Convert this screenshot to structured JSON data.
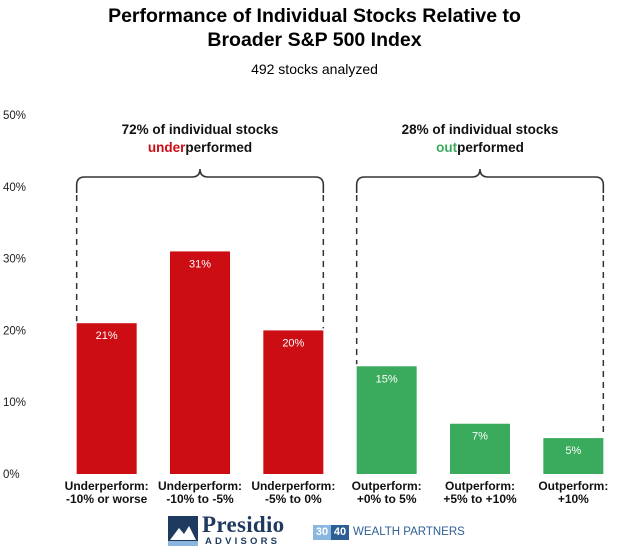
{
  "chart_data": {
    "type": "bar",
    "title_line1": "Performance of Individual Stocks Relative to",
    "title_line2": "Broader S&P 500 Index",
    "subtitle": "492 stocks analyzed",
    "categories": [
      [
        "Underperform:",
        "-10% or worse"
      ],
      [
        "Underperform:",
        "-10% to -5%"
      ],
      [
        "Underperform:",
        "-5% to 0%"
      ],
      [
        "Outperform:",
        "+0% to 5%"
      ],
      [
        "Outperform:",
        "+5% to +10%"
      ],
      [
        "Outperform:",
        "+10%"
      ]
    ],
    "values": [
      21,
      31,
      20,
      15,
      7,
      5
    ],
    "value_labels": [
      "21%",
      "31%",
      "20%",
      "15%",
      "7%",
      "5%"
    ],
    "bar_colors": [
      "#cc0d14",
      "#cc0d14",
      "#cc0d14",
      "#3aab5d",
      "#3aab5d",
      "#3aab5d"
    ],
    "ylim": [
      0,
      50
    ],
    "yticks": [
      0,
      10,
      20,
      30,
      40,
      50
    ],
    "ytick_labels": [
      "0%",
      "10%",
      "20%",
      "30%",
      "40%",
      "50%"
    ],
    "grid": false,
    "annotations": [
      {
        "line1": "72% of individual stocks",
        "line2_colored": "under",
        "line2_rest": "performed",
        "color": "#cc0d14",
        "span": [
          0,
          2
        ]
      },
      {
        "line1": "28% of individual stocks",
        "line2_colored": "out",
        "line2_rest": "performed",
        "color": "#3aab5d",
        "span": [
          3,
          5
        ]
      }
    ]
  },
  "footer": {
    "presidio_name": "Presidio",
    "presidio_sub": "ADVISORS",
    "wp_num1": "30",
    "wp_num2": "40",
    "wp_text": "WEALTH PARTNERS"
  }
}
